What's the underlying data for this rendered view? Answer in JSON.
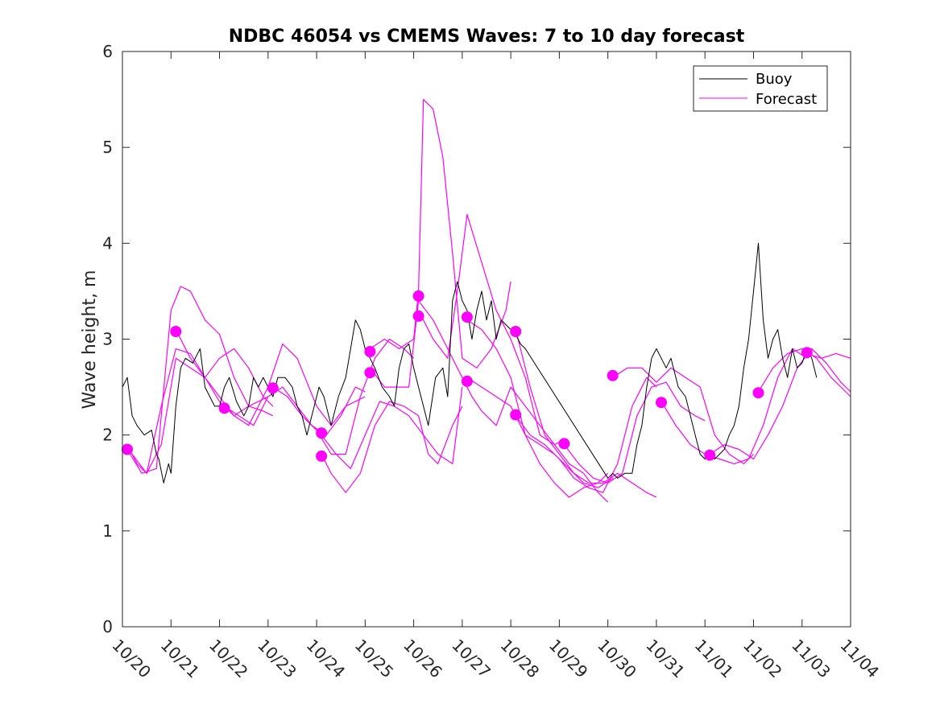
{
  "chart_data": {
    "type": "line",
    "title": "NDBC 46054 vs CMEMS Waves: 7 to 10 day forecast",
    "xlabel": "",
    "ylabel": "Wave height, m",
    "xlim": [
      0,
      15
    ],
    "ylim": [
      0,
      6
    ],
    "grid": false,
    "legend_position": "top-right",
    "x_tick_values": [
      0,
      1,
      2,
      3,
      4,
      5,
      6,
      7,
      8,
      9,
      10,
      11,
      12,
      13,
      14,
      15
    ],
    "x_tick_labels": [
      "10/20",
      "10/21",
      "10/22",
      "10/23",
      "10/24",
      "10/25",
      "10/26",
      "10/27",
      "10/28",
      "10/29",
      "10/30",
      "10/31",
      "11/01",
      "11/02",
      "11/03",
      "11/04"
    ],
    "y_ticks": [
      0,
      1,
      2,
      3,
      4,
      5,
      6
    ],
    "colors": {
      "buoy": "#000000",
      "forecast": "#ff00ff"
    },
    "legend": [
      {
        "name": "Buoy",
        "color": "#000000"
      },
      {
        "name": "Forecast",
        "color": "#ff00ff"
      }
    ],
    "buoy": {
      "name": "Buoy",
      "x": [
        0,
        0.1,
        0.2,
        0.3,
        0.45,
        0.6,
        0.7,
        0.75,
        0.85,
        0.95,
        1.0,
        1.1,
        1.2,
        1.3,
        1.45,
        1.6,
        1.7,
        1.8,
        1.9,
        2.0,
        2.1,
        2.2,
        2.35,
        2.5,
        2.6,
        2.7,
        2.8,
        2.9,
        3.0,
        3.1,
        3.2,
        3.35,
        3.5,
        3.6,
        3.7,
        3.8,
        3.95,
        4.05,
        4.15,
        4.3,
        4.45,
        4.6,
        4.7,
        4.8,
        4.9,
        5.0,
        5.1,
        5.2,
        5.35,
        5.5,
        5.6,
        5.7,
        5.8,
        5.9,
        6.0,
        6.1,
        6.2,
        6.3,
        6.45,
        6.6,
        6.7,
        6.8,
        6.9,
        7.0,
        7.1,
        7.2,
        7.3,
        7.4,
        7.5,
        7.6,
        7.7,
        7.8,
        7.9,
        8.0,
        8.1,
        8.2,
        8.3,
        10.0,
        10.1,
        10.2,
        10.35,
        10.5,
        10.6,
        10.7,
        10.8,
        10.9,
        11.0,
        11.1,
        11.2,
        11.3,
        11.45,
        11.6,
        11.7,
        11.8,
        11.9,
        12.0,
        12.1,
        12.2,
        12.3,
        12.4,
        12.5,
        12.6,
        12.7,
        12.8,
        12.9,
        13.0,
        13.1,
        13.2,
        13.3,
        13.4,
        13.5,
        13.6,
        13.7,
        13.8,
        13.9,
        14.0,
        14.1,
        14.2,
        14.3
      ],
      "y": [
        2.5,
        2.6,
        2.2,
        2.1,
        2.0,
        2.05,
        1.8,
        1.75,
        1.5,
        1.7,
        1.6,
        2.3,
        2.7,
        2.8,
        2.75,
        2.9,
        2.5,
        2.4,
        2.3,
        2.3,
        2.5,
        2.6,
        2.35,
        2.2,
        2.3,
        2.6,
        2.5,
        2.6,
        2.5,
        2.4,
        2.6,
        2.6,
        2.5,
        2.3,
        2.2,
        2.0,
        2.3,
        2.5,
        2.4,
        2.1,
        2.4,
        2.6,
        2.9,
        3.2,
        3.1,
        2.9,
        2.8,
        2.7,
        2.5,
        2.4,
        2.3,
        2.7,
        2.9,
        2.95,
        2.7,
        2.5,
        2.3,
        2.1,
        2.6,
        2.7,
        2.4,
        3.4,
        3.6,
        3.4,
        3.3,
        3.0,
        3.3,
        3.5,
        3.2,
        3.4,
        3.0,
        3.2,
        3.15,
        3.1,
        3.05,
        2.95,
        2.9,
        1.55,
        1.6,
        1.55,
        1.6,
        1.6,
        1.9,
        2.1,
        2.5,
        2.8,
        2.9,
        2.8,
        2.7,
        2.8,
        2.5,
        2.4,
        2.2,
        2.0,
        1.8,
        1.75,
        1.8,
        1.75,
        1.8,
        1.85,
        2.0,
        2.1,
        2.3,
        2.7,
        3.0,
        3.5,
        4.0,
        3.2,
        2.8,
        3.0,
        3.1,
        2.8,
        2.6,
        2.9,
        2.7,
        2.75,
        2.9,
        2.8,
        2.6
      ]
    },
    "forecast_series": [
      {
        "name": "Forecast",
        "x": [
          0.1,
          0.3,
          0.5,
          0.8,
          1.1,
          1.4,
          1.7,
          2.0,
          2.3,
          2.6,
          3.0
        ],
        "y": [
          1.9,
          1.7,
          1.6,
          2.3,
          2.9,
          2.85,
          2.6,
          2.4,
          2.2,
          2.3,
          2.4
        ]
      },
      {
        "name": "Forecast",
        "x": [
          0.1,
          0.4,
          0.7,
          1.0,
          1.2,
          1.4,
          1.7,
          2.0,
          2.3,
          2.6,
          2.9,
          3.1
        ],
        "y": [
          1.85,
          1.6,
          1.65,
          3.3,
          3.55,
          3.5,
          3.2,
          3.05,
          2.6,
          2.3,
          2.25,
          2.2
        ]
      },
      {
        "name": "Forecast",
        "x": [
          0.2,
          0.5,
          0.8,
          1.1,
          1.4,
          1.7,
          2.0,
          2.3,
          2.6,
          2.9,
          3.1
        ],
        "y": [
          1.8,
          1.6,
          1.9,
          2.8,
          2.7,
          2.6,
          2.8,
          2.9,
          2.7,
          2.4,
          2.3
        ]
      },
      {
        "name": "Forecast",
        "x": [
          1.1,
          1.4,
          1.7,
          2.0,
          2.3,
          2.6,
          3.0,
          3.3,
          3.6,
          4.0,
          4.3,
          4.6,
          5.0
        ],
        "y": [
          3.1,
          2.8,
          2.6,
          2.35,
          2.2,
          2.1,
          2.5,
          2.95,
          2.8,
          2.3,
          2.1,
          2.3,
          2.4
        ]
      },
      {
        "name": "Forecast",
        "x": [
          2.1,
          2.4,
          2.7,
          3.0,
          3.3,
          3.6,
          3.9,
          4.2,
          4.5,
          4.8,
          5.0
        ],
        "y": [
          2.3,
          2.2,
          2.1,
          2.4,
          2.5,
          2.3,
          2.1,
          2.0,
          2.2,
          2.5,
          2.45
        ]
      },
      {
        "name": "Forecast",
        "x": [
          3.1,
          3.4,
          3.7,
          4.0,
          4.3,
          4.6,
          4.9,
          5.2,
          5.5,
          5.8,
          6.0
        ],
        "y": [
          2.5,
          2.4,
          2.2,
          2.05,
          1.8,
          1.8,
          2.4,
          2.8,
          3.0,
          2.9,
          2.8
        ]
      },
      {
        "name": "Forecast",
        "x": [
          4.1,
          4.3,
          4.6,
          4.9,
          5.2,
          5.5,
          5.8,
          6.1,
          6.3,
          6.5,
          6.8,
          7.0
        ],
        "y": [
          1.8,
          1.6,
          1.4,
          1.6,
          2.1,
          2.35,
          2.3,
          2.2,
          1.8,
          1.7,
          2.1,
          2.3
        ]
      },
      {
        "name": "Forecast",
        "x": [
          4.1,
          4.4,
          4.7,
          5.0,
          5.3,
          5.6,
          5.9,
          6.2,
          6.5,
          6.8,
          7.0
        ],
        "y": [
          2.0,
          1.8,
          1.65,
          2.0,
          2.35,
          2.3,
          2.2,
          2.0,
          1.8,
          1.7,
          2.5
        ]
      },
      {
        "name": "Forecast",
        "x": [
          5.1,
          5.4,
          5.7,
          6.0,
          6.1,
          6.2,
          6.4,
          6.6,
          6.8,
          7.0,
          7.3,
          7.6,
          7.9,
          8.0
        ],
        "y": [
          2.9,
          3.0,
          2.9,
          3.0,
          3.5,
          5.5,
          5.4,
          4.9,
          3.9,
          2.8,
          2.7,
          2.9,
          3.3,
          3.6
        ]
      },
      {
        "name": "Forecast",
        "x": [
          5.1,
          5.4,
          5.7,
          5.9,
          6.1,
          6.4,
          6.7,
          6.9,
          7.0,
          7.2,
          7.4,
          7.7,
          8.0,
          8.3,
          8.6,
          8.9,
          9.1
        ],
        "y": [
          2.7,
          2.5,
          2.5,
          2.5,
          3.4,
          3.2,
          2.9,
          2.7,
          2.6,
          2.4,
          2.25,
          2.1,
          2.5,
          2.3,
          2.1,
          1.9,
          1.95
        ]
      },
      {
        "name": "Forecast",
        "x": [
          6.1,
          6.4,
          6.7,
          6.9,
          7.1,
          7.4,
          7.7,
          8.0,
          8.3,
          8.6,
          8.9,
          9.2,
          9.5,
          9.8,
          10.0
        ],
        "y": [
          3.3,
          3.0,
          2.8,
          3.5,
          4.3,
          3.8,
          3.3,
          3.0,
          2.6,
          2.0,
          1.9,
          1.7,
          1.6,
          1.4,
          1.3
        ]
      },
      {
        "name": "Forecast",
        "x": [
          7.1,
          7.4,
          7.7,
          8.0,
          8.3,
          8.6,
          8.9,
          9.2,
          9.5,
          9.8,
          10.0
        ],
        "y": [
          3.2,
          3.1,
          2.9,
          2.6,
          2.0,
          1.7,
          1.5,
          1.35,
          1.45,
          1.5,
          1.6
        ]
      },
      {
        "name": "Forecast",
        "x": [
          7.1,
          7.4,
          7.7,
          8.0,
          8.3,
          8.6,
          8.9,
          9.2,
          9.5,
          9.8,
          10.1
        ],
        "y": [
          2.6,
          2.5,
          2.4,
          2.3,
          2.0,
          1.9,
          1.8,
          1.65,
          1.5,
          1.45,
          1.55
        ]
      },
      {
        "name": "Forecast",
        "x": [
          8.1,
          8.4,
          8.7,
          9.0,
          9.3,
          9.6,
          9.9,
          10.2,
          10.5,
          10.8,
          11.0
        ],
        "y": [
          3.1,
          2.5,
          2.0,
          1.8,
          1.6,
          1.5,
          1.5,
          1.6,
          1.5,
          1.4,
          1.35
        ]
      },
      {
        "name": "Forecast",
        "x": [
          8.1,
          8.4,
          8.7,
          9.0,
          9.3,
          9.6,
          9.9,
          10.2,
          10.5,
          10.8,
          11.0
        ],
        "y": [
          2.2,
          2.0,
          1.9,
          1.75,
          1.55,
          1.45,
          1.4,
          1.7,
          2.3,
          2.6,
          2.5
        ]
      },
      {
        "name": "Forecast",
        "x": [
          9.1,
          9.4,
          9.7,
          10.0,
          10.3,
          10.6,
          10.9,
          11.2,
          11.5,
          11.8,
          12.0
        ],
        "y": [
          1.9,
          1.7,
          1.55,
          1.5,
          1.6,
          2.2,
          2.5,
          2.55,
          2.3,
          2.2,
          2.15
        ]
      },
      {
        "name": "Forecast",
        "x": [
          10.1,
          10.4,
          10.7,
          11.0,
          11.3,
          11.6,
          11.9,
          12.2,
          12.5,
          12.8,
          13.0
        ],
        "y": [
          2.6,
          2.7,
          2.7,
          2.55,
          2.7,
          2.6,
          2.5,
          2.0,
          1.8,
          1.7,
          1.8
        ]
      },
      {
        "name": "Forecast",
        "x": [
          11.1,
          11.4,
          11.7,
          12.0,
          12.3,
          12.6,
          12.9,
          13.2,
          13.5,
          13.8,
          14.1
        ],
        "y": [
          2.35,
          2.1,
          1.9,
          1.8,
          1.75,
          1.7,
          1.75,
          2.1,
          2.6,
          2.9,
          2.8
        ]
      },
      {
        "name": "Forecast",
        "x": [
          12.1,
          12.4,
          12.7,
          13.0,
          13.3,
          13.6,
          13.9,
          14.2,
          14.5,
          14.8,
          15.0
        ],
        "y": [
          1.8,
          1.9,
          1.85,
          1.75,
          2.0,
          2.3,
          2.7,
          2.9,
          2.75,
          2.55,
          2.45
        ]
      },
      {
        "name": "Forecast",
        "x": [
          13.1,
          13.4,
          13.7,
          14.0,
          14.3,
          14.6,
          14.9,
          15.0
        ],
        "y": [
          2.45,
          2.7,
          2.85,
          2.9,
          2.8,
          2.6,
          2.45,
          2.4
        ]
      },
      {
        "name": "Forecast",
        "x": [
          14.1,
          14.4,
          14.7,
          15.0
        ],
        "y": [
          2.85,
          2.8,
          2.85,
          2.8
        ]
      }
    ],
    "forecast_markers": {
      "x": [
        0.1,
        1.1,
        2.1,
        3.1,
        4.1,
        4.1,
        5.1,
        5.1,
        6.1,
        6.1,
        7.1,
        7.1,
        8.1,
        8.1,
        9.1,
        10.1,
        11.1,
        12.1,
        13.1,
        14.1
      ],
      "y": [
        1.85,
        3.08,
        2.28,
        2.49,
        2.02,
        1.78,
        2.87,
        2.65,
        3.45,
        3.24,
        3.23,
        2.56,
        3.08,
        2.21,
        1.91,
        2.62,
        2.34,
        1.79,
        2.44,
        2.86
      ]
    }
  }
}
